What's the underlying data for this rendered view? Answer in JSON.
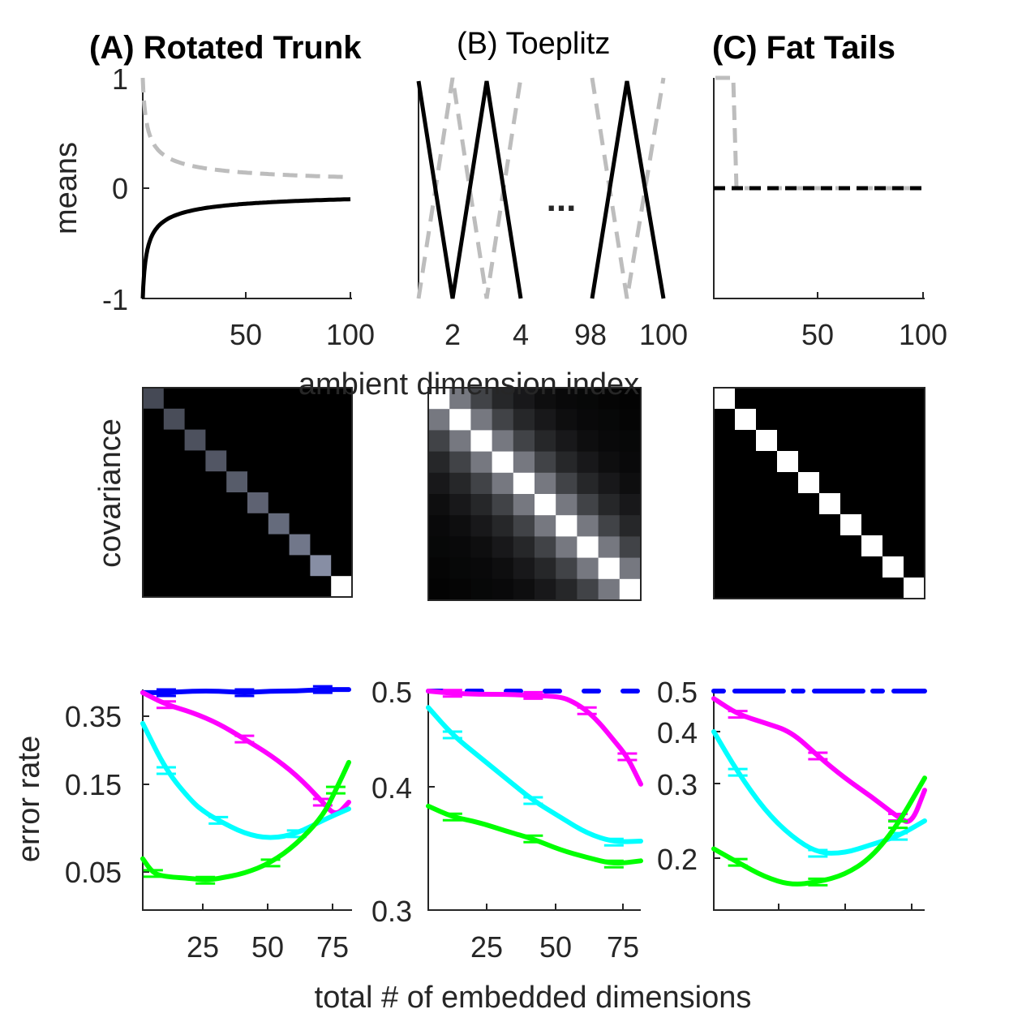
{
  "chart_data": [
    {
      "panel": "A-means",
      "type": "line",
      "title": "(A) Rotated Trunk",
      "ylabel": "means",
      "xlim": [
        1,
        100
      ],
      "ylim": [
        -1,
        1
      ],
      "xticks": [
        "50",
        "100"
      ],
      "yticks": [
        "-1",
        "0",
        "1"
      ],
      "series": [
        {
          "style": "dashed",
          "color": "#bdbdbd",
          "formula": "1/sqrt(i)"
        },
        {
          "style": "solid",
          "color": "#000000",
          "formula": "-1/sqrt(i)"
        }
      ]
    },
    {
      "panel": "B-means",
      "type": "line",
      "title": "(B) Toeplitz",
      "xticks": [
        "2",
        "4",
        "98",
        "100"
      ],
      "ellipsis": "...",
      "ylim": [
        -1,
        1
      ],
      "series": [
        {
          "style": "solid",
          "color": "#000000",
          "x": [
            1,
            2,
            3,
            4
          ],
          "y": [
            1,
            -1,
            1,
            -1
          ]
        },
        {
          "style": "dashed",
          "color": "#bdbdbd",
          "x": [
            1,
            2,
            3,
            4
          ],
          "y": [
            -1,
            1,
            -1,
            1
          ]
        }
      ]
    },
    {
      "panel": "C-means",
      "type": "line",
      "title": "(C) Fat Tails",
      "xlim": [
        1,
        100
      ],
      "ylim": [
        -1,
        1
      ],
      "xticks": [
        "50",
        "100"
      ],
      "series": [
        {
          "style": "dashed",
          "color": "#bdbdbd",
          "x": [
            1,
            10,
            11,
            100
          ],
          "y": [
            1,
            1,
            0,
            0
          ]
        },
        {
          "style": "dashed",
          "color": "#000000",
          "x": [
            1,
            100
          ],
          "y": [
            0,
            0
          ]
        }
      ]
    },
    {
      "panel": "shared-x-label",
      "xlabel": "ambient dimension index"
    },
    {
      "panel": "A-cov",
      "type": "heatmap",
      "ylabel": "covariance",
      "diag": [
        0.35,
        0.37,
        0.39,
        0.41,
        0.44,
        0.47,
        0.51,
        0.57,
        0.68,
        1.0
      ],
      "off_decay": 0
    },
    {
      "panel": "B-cov",
      "type": "heatmap",
      "diag": [
        1,
        1,
        1,
        1,
        1,
        1,
        1,
        1,
        1,
        1
      ],
      "off_diag_by_distance": [
        1.0,
        0.5,
        0.28,
        0.16,
        0.1,
        0.06,
        0.04,
        0.03,
        0.02,
        0.01
      ]
    },
    {
      "panel": "C-cov",
      "type": "heatmap",
      "diag": [
        1,
        1,
        1,
        1,
        1,
        1,
        1,
        1,
        1,
        1
      ],
      "off_decay": 0
    },
    {
      "panel": "A-error",
      "type": "line",
      "ylabel": "error rate",
      "xlabel": "total # of embedded dimensions",
      "yscale": "log",
      "ylim": [
        0.03,
        0.5
      ],
      "xlim": [
        1,
        80
      ],
      "xticks": [
        "25",
        "50",
        "75"
      ],
      "yticks": [
        "0.05",
        "0.15",
        "0.35"
      ],
      "series": [
        {
          "color": "#0000ff",
          "x": [
            1,
            10,
            20,
            30,
            40,
            50,
            60,
            70,
            80
          ],
          "y": [
            0.49,
            0.49,
            0.5,
            0.5,
            0.49,
            0.5,
            0.5,
            0.51,
            0.51
          ]
        },
        {
          "color": "#ff00ff",
          "x": [
            1,
            10,
            20,
            30,
            40,
            50,
            60,
            70,
            75,
            80
          ],
          "y": [
            0.49,
            0.42,
            0.38,
            0.33,
            0.27,
            0.22,
            0.17,
            0.12,
            0.1,
            0.12
          ]
        },
        {
          "color": "#00ffff",
          "x": [
            1,
            10,
            20,
            25,
            30,
            40,
            50,
            60,
            70,
            80
          ],
          "y": [
            0.33,
            0.18,
            0.12,
            0.105,
            0.095,
            0.08,
            0.075,
            0.08,
            0.095,
            0.11
          ]
        },
        {
          "color": "#00ff00",
          "x": [
            1,
            5,
            10,
            20,
            25,
            30,
            40,
            50,
            60,
            70,
            75,
            80
          ],
          "y": [
            0.058,
            0.048,
            0.046,
            0.045,
            0.044,
            0.045,
            0.048,
            0.055,
            0.07,
            0.1,
            0.14,
            0.2
          ]
        }
      ]
    },
    {
      "panel": "B-error",
      "type": "line",
      "ylim": [
        0.3,
        0.5
      ],
      "xlim": [
        1,
        80
      ],
      "xticks": [
        "25",
        "50",
        "75"
      ],
      "yticks": [
        "0.3",
        "0.4",
        "0.5"
      ],
      "series": [
        {
          "color": "#0000ff",
          "style": "dashed",
          "x": [
            1,
            20,
            40,
            60,
            80
          ],
          "y": [
            0.5,
            0.5,
            0.5,
            0.5,
            0.5
          ]
        },
        {
          "color": "#ff00ff",
          "x": [
            1,
            10,
            20,
            30,
            40,
            50,
            55,
            60,
            65,
            70,
            75,
            80
          ],
          "y": [
            0.5,
            0.498,
            0.497,
            0.497,
            0.496,
            0.495,
            0.49,
            0.482,
            0.47,
            0.455,
            0.44,
            0.415
          ]
        },
        {
          "color": "#00ffff",
          "x": [
            1,
            10,
            20,
            30,
            40,
            50,
            60,
            70,
            80
          ],
          "y": [
            0.485,
            0.46,
            0.44,
            0.42,
            0.4,
            0.385,
            0.37,
            0.362,
            0.363
          ]
        },
        {
          "color": "#00ff00",
          "x": [
            1,
            10,
            20,
            30,
            40,
            50,
            60,
            70,
            80
          ],
          "y": [
            0.395,
            0.385,
            0.38,
            0.372,
            0.365,
            0.355,
            0.348,
            0.342,
            0.345
          ]
        }
      ]
    },
    {
      "panel": "C-error",
      "type": "line",
      "yscale": "log",
      "ylim": [
        0.15,
        0.5
      ],
      "xlim": [
        1,
        80
      ],
      "yticks": [
        "0.2",
        "0.3",
        "0.4",
        "0.5"
      ],
      "series": [
        {
          "color": "#0000ff",
          "style": "mixed",
          "x": [
            1,
            20,
            40,
            60,
            80
          ],
          "y": [
            0.5,
            0.5,
            0.5,
            0.5,
            0.5
          ]
        },
        {
          "color": "#ff00ff",
          "x": [
            1,
            10,
            20,
            30,
            40,
            50,
            60,
            70,
            75,
            80
          ],
          "y": [
            0.48,
            0.44,
            0.42,
            0.4,
            0.35,
            0.31,
            0.28,
            0.25,
            0.24,
            0.29
          ]
        },
        {
          "color": "#00ffff",
          "x": [
            1,
            10,
            20,
            30,
            40,
            50,
            60,
            70,
            80
          ],
          "y": [
            0.4,
            0.32,
            0.26,
            0.225,
            0.205,
            0.205,
            0.215,
            0.225,
            0.245
          ]
        },
        {
          "color": "#00ff00",
          "x": [
            1,
            10,
            20,
            30,
            40,
            50,
            60,
            70,
            80
          ],
          "y": [
            0.21,
            0.195,
            0.18,
            0.172,
            0.175,
            0.182,
            0.2,
            0.24,
            0.31
          ]
        }
      ]
    }
  ]
}
